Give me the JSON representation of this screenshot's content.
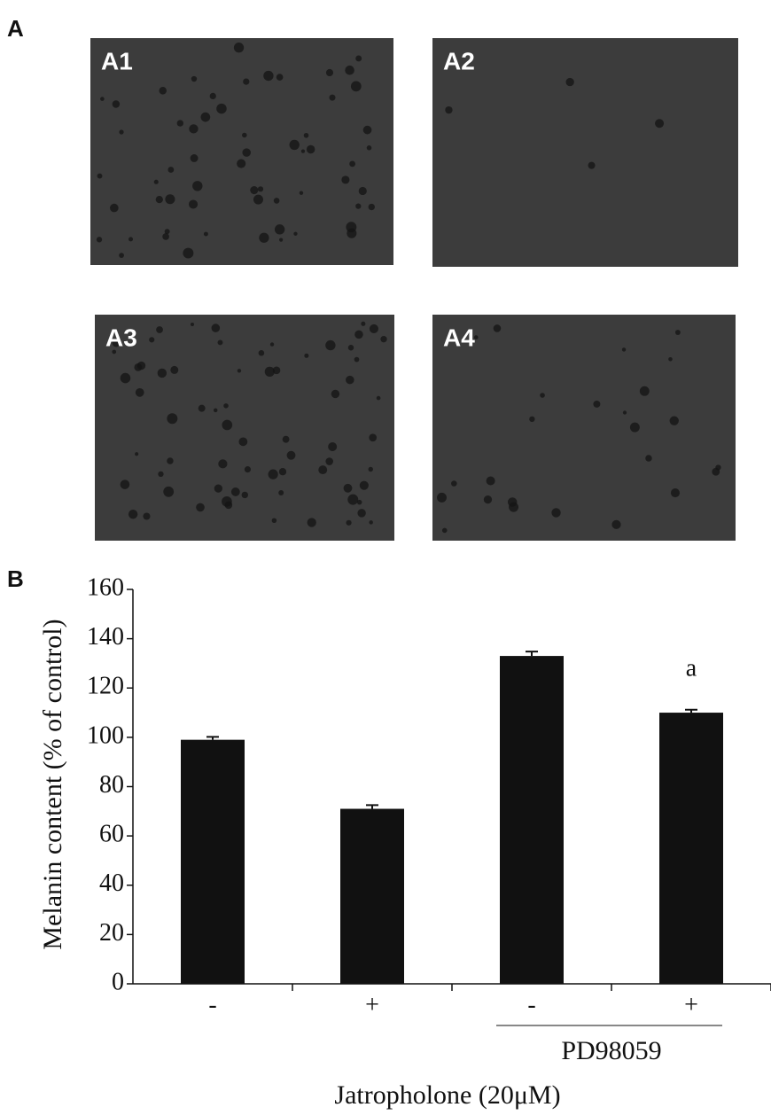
{
  "panel_labels": [
    "A",
    "B"
  ],
  "images": [
    {
      "label": "A1"
    },
    {
      "label": "A2"
    },
    {
      "label": "A3"
    },
    {
      "label": "A4"
    }
  ],
  "chart_data": {
    "type": "bar",
    "categories": [
      "-",
      "+",
      "-",
      "+"
    ],
    "values": [
      99,
      71,
      133,
      110
    ],
    "errors": [
      1.2,
      1.5,
      1.8,
      1.2
    ],
    "color": "#111111",
    "ylim": [
      0,
      160
    ],
    "yticks": [
      0,
      20,
      40,
      60,
      80,
      100,
      120,
      140,
      160
    ],
    "ylabel": "Melanin content (% of control)",
    "xlabel": "Jatropholone (20μM)",
    "group_label": "PD98059",
    "annotation": "a"
  }
}
